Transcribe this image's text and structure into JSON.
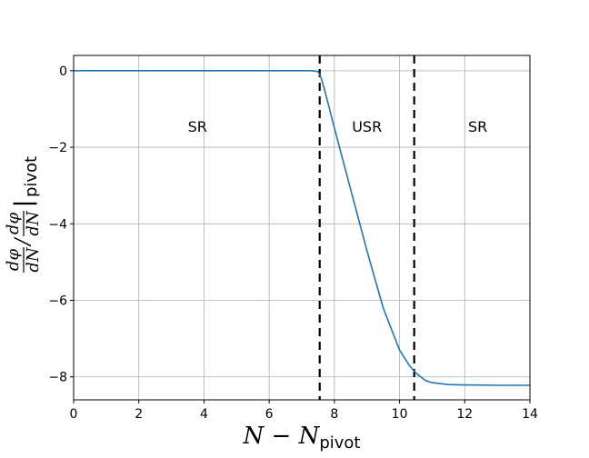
{
  "chart_data": {
    "type": "line",
    "xlabel": {
      "main": "N − N",
      "sub": "pivot"
    },
    "ylabel": {
      "num": "dφ",
      "den": "dN",
      "slash": "/",
      "num2": "dφ",
      "den2": "dN",
      "bar": "|",
      "sub": "pivot"
    },
    "xlim": [
      0,
      14
    ],
    "ylim": [
      -8.6,
      0.4
    ],
    "xticks": [
      0,
      2,
      4,
      6,
      8,
      10,
      12,
      14
    ],
    "yticks": [
      0,
      -2,
      -4,
      -6,
      -8
    ],
    "ytick_labels": [
      "0",
      "−2",
      "−4",
      "−6",
      "−8"
    ],
    "grid": true,
    "vlines": [
      7.55,
      10.45
    ],
    "regions": [
      {
        "label": "SR",
        "x": 3.8,
        "y": -1.45
      },
      {
        "label": "USR",
        "x": 9.0,
        "y": -1.45
      },
      {
        "label": "SR",
        "x": 12.4,
        "y": -1.45
      }
    ],
    "series": [
      {
        "color": "#1f77b4",
        "x": [
          0,
          2,
          4,
          6,
          7.3,
          7.5,
          7.6,
          7.7,
          8.0,
          8.5,
          9.0,
          9.5,
          10.0,
          10.3,
          10.5,
          10.8,
          11.0,
          11.5,
          12.0,
          13.0,
          14.0
        ],
        "y": [
          0,
          0,
          0,
          0,
          0,
          -0.02,
          -0.2,
          -0.5,
          -1.5,
          -3.1,
          -4.7,
          -6.2,
          -7.3,
          -7.7,
          -7.9,
          -8.1,
          -8.15,
          -8.2,
          -8.21,
          -8.22,
          -8.22
        ]
      }
    ]
  }
}
